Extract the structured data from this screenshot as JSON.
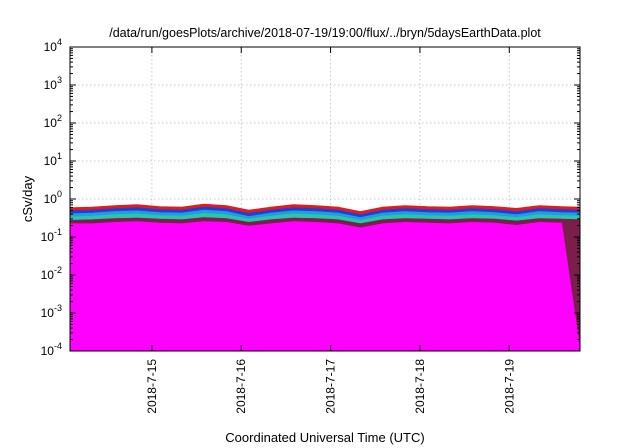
{
  "chart_data": {
    "type": "area",
    "title": "/data/run/goesPlots/archive/2018-07-19/19:00/flux/../bryn/5daysEarthData.plot",
    "xlabel": "Coordinated Universal Time (UTC)",
    "ylabel": "cSv/day",
    "y_scale": "log",
    "ylim": [
      0.0001,
      10000
    ],
    "y_ticks": [
      {
        "base": "10",
        "exp": "-4",
        "value": 0.0001
      },
      {
        "base": "10",
        "exp": "-3",
        "value": 0.001
      },
      {
        "base": "10",
        "exp": "-2",
        "value": 0.01
      },
      {
        "base": "10",
        "exp": "-1",
        "value": 0.1
      },
      {
        "base": "10",
        "exp": "0",
        "value": 1
      },
      {
        "base": "10",
        "exp": "1",
        "value": 10
      },
      {
        "base": "10",
        "exp": "2",
        "value": 100
      },
      {
        "base": "10",
        "exp": "3",
        "value": 1000
      },
      {
        "base": "10",
        "exp": "4",
        "value": 10000
      }
    ],
    "xlim": [
      "2018-07-14T02:00",
      "2018-07-19T19:00"
    ],
    "x_ticks": [
      {
        "label": "2018-7-15",
        "value": "2018-07-15T00:00"
      },
      {
        "label": "2018-7-16",
        "value": "2018-07-16T00:00"
      },
      {
        "label": "2018-7-17",
        "value": "2018-07-17T00:00"
      },
      {
        "label": "2018-7-18",
        "value": "2018-07-18T00:00"
      },
      {
        "label": "2018-7-19",
        "value": "2018-07-19T00:00"
      }
    ],
    "grid": true,
    "x": [
      "2018-07-14T02:00",
      "2018-07-14T08:00",
      "2018-07-14T14:00",
      "2018-07-14T20:00",
      "2018-07-15T02:00",
      "2018-07-15T08:00",
      "2018-07-15T14:00",
      "2018-07-15T20:00",
      "2018-07-16T02:00",
      "2018-07-16T08:00",
      "2018-07-16T14:00",
      "2018-07-16T20:00",
      "2018-07-17T02:00",
      "2018-07-17T08:00",
      "2018-07-17T14:00",
      "2018-07-17T20:00",
      "2018-07-18T02:00",
      "2018-07-18T08:00",
      "2018-07-18T14:00",
      "2018-07-18T20:00",
      "2018-07-19T02:00",
      "2018-07-19T08:00",
      "2018-07-19T14:00",
      "2018-07-19T19:00"
    ],
    "series": [
      {
        "color": "#e41a1c",
        "values": [
          0.58,
          0.6,
          0.66,
          0.7,
          0.62,
          0.6,
          0.72,
          0.66,
          0.5,
          0.6,
          0.7,
          0.66,
          0.6,
          0.46,
          0.6,
          0.66,
          0.62,
          0.6,
          0.66,
          0.62,
          0.56,
          0.66,
          0.62,
          0.6
        ]
      },
      {
        "color": "#1f3fd8",
        "values": [
          0.48,
          0.5,
          0.55,
          0.58,
          0.52,
          0.5,
          0.6,
          0.55,
          0.41,
          0.5,
          0.58,
          0.55,
          0.5,
          0.38,
          0.5,
          0.55,
          0.52,
          0.5,
          0.55,
          0.52,
          0.46,
          0.55,
          0.52,
          0.5
        ]
      },
      {
        "color": "#1aa0e0",
        "values": [
          0.4,
          0.42,
          0.46,
          0.48,
          0.43,
          0.42,
          0.5,
          0.46,
          0.34,
          0.42,
          0.48,
          0.46,
          0.42,
          0.32,
          0.42,
          0.46,
          0.43,
          0.42,
          0.46,
          0.43,
          0.38,
          0.46,
          0.43,
          0.42
        ]
      },
      {
        "color": "#2ec4a8",
        "values": [
          0.33,
          0.35,
          0.38,
          0.4,
          0.36,
          0.35,
          0.41,
          0.38,
          0.29,
          0.35,
          0.4,
          0.38,
          0.35,
          0.27,
          0.35,
          0.38,
          0.36,
          0.35,
          0.38,
          0.36,
          0.32,
          0.38,
          0.36,
          0.35
        ]
      },
      {
        "color": "#7a1f4a",
        "values": [
          0.27,
          0.28,
          0.3,
          0.31,
          0.29,
          0.28,
          0.32,
          0.3,
          0.24,
          0.28,
          0.31,
          0.3,
          0.28,
          0.22,
          0.28,
          0.3,
          0.29,
          0.28,
          0.3,
          0.29,
          0.26,
          0.3,
          0.29,
          0.28
        ]
      },
      {
        "color": "#ff00ff",
        "values": [
          0.22,
          0.22,
          0.24,
          0.25,
          0.23,
          0.22,
          0.25,
          0.24,
          0.19,
          0.22,
          0.25,
          0.24,
          0.22,
          0.17,
          0.22,
          0.24,
          0.23,
          0.22,
          0.24,
          0.23,
          0.2,
          0.24,
          0.23,
          0.0001
        ]
      }
    ]
  }
}
